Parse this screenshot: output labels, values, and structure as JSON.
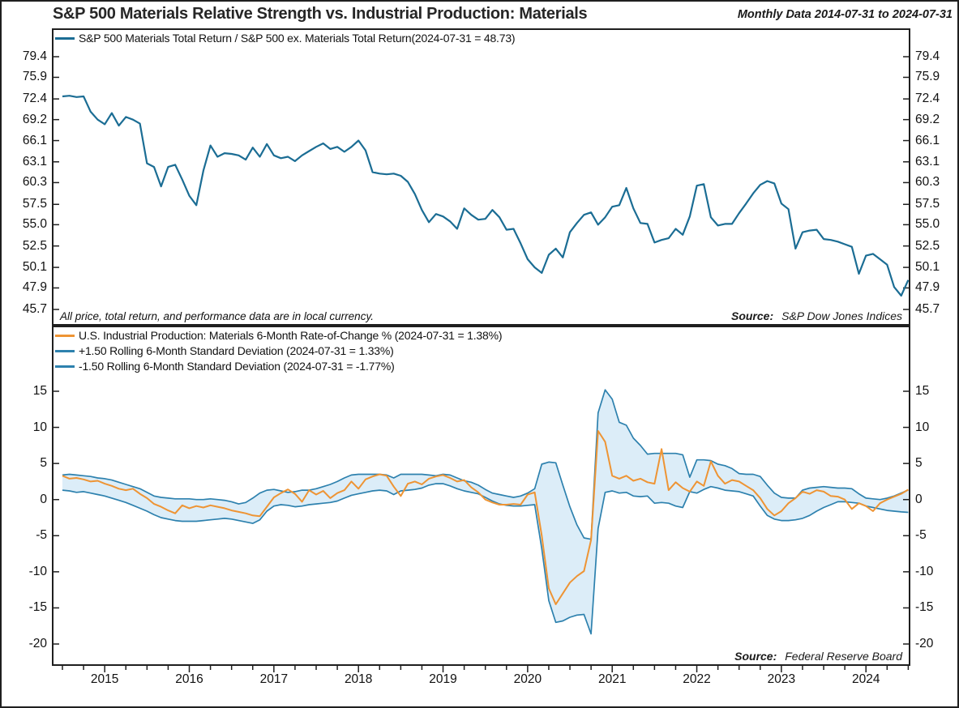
{
  "header": {
    "title": "S&P 500 Materials Relative Strength vs. Industrial Production: Materials",
    "subtitle": "Monthly Data 2014-07-31 to 2024-07-31"
  },
  "colors": {
    "top_line": "#1b6d94",
    "band_line": "#2d81ae",
    "band_fill": "#dcedf8",
    "roc_line": "#ee9434",
    "axis": "#1f1f1f",
    "text": "#1a1a1a"
  },
  "top_panel": {
    "legend": [
      {
        "label": "S&P 500 Materials Total Return / S&P 500 ex. Materials Total Return(2024-07-31 = 48.73)",
        "color": "#1b6d94"
      }
    ],
    "footnote": "All price, total return, and performance data are in local currency.",
    "source_label": "Source:",
    "source_value": "S&P Dow Jones Indices"
  },
  "bottom_panel": {
    "legend": [
      {
        "label": "U.S. Industrial Production: Materials 6-Month Rate-of-Change % (2024-07-31 = 1.38%)",
        "color": "#ee9434"
      },
      {
        "label": "+1.50 Rolling 6-Month Standard Deviation (2024-07-31 = 1.33%)",
        "color": "#2d81ae"
      },
      {
        "label": "-1.50 Rolling 6-Month Standard Deviation (2024-07-31 = -1.77%)",
        "color": "#2d81ae"
      }
    ],
    "source_label": "Source:",
    "source_value": "Federal Reserve Board"
  },
  "chart_data": [
    {
      "type": "line",
      "panel": "top",
      "y_scale": "log",
      "x_start": "2014-07-31",
      "x_end": "2024-07-31",
      "frequency": "monthly",
      "y_ticks": [
        79.4,
        75.9,
        72.4,
        69.2,
        66.1,
        63.1,
        60.3,
        57.5,
        55.0,
        52.5,
        50.1,
        47.9,
        45.7
      ],
      "x_year_labels": [
        "2015",
        "2016",
        "2017",
        "2018",
        "2019",
        "2020",
        "2021",
        "2022",
        "2023",
        "2024"
      ],
      "series": [
        {
          "name": "S&P 500 Materials Total Return / S&P 500 ex. Materials Total Return",
          "last_value": 48.73,
          "color": "#1b6d94",
          "values": [
            72.8,
            72.9,
            72.7,
            72.8,
            70.4,
            69.2,
            68.5,
            70.2,
            68.3,
            69.6,
            69.2,
            68.6,
            62.9,
            62.4,
            59.8,
            62.4,
            62.7,
            60.7,
            58.6,
            57.4,
            61.9,
            65.4,
            63.8,
            64.3,
            64.2,
            64.0,
            63.4,
            65.1,
            63.8,
            65.6,
            64.0,
            63.6,
            63.8,
            63.2,
            64.0,
            64.6,
            65.2,
            65.7,
            64.9,
            65.2,
            64.5,
            65.2,
            66.1,
            64.7,
            61.7,
            61.5,
            61.4,
            61.5,
            61.2,
            60.4,
            58.8,
            56.8,
            55.3,
            56.3,
            56.0,
            55.4,
            54.5,
            57.0,
            56.2,
            55.6,
            55.7,
            56.8,
            55.9,
            54.4,
            54.5,
            52.8,
            51.0,
            50.1,
            49.5,
            51.5,
            52.2,
            51.2,
            54.1,
            55.2,
            56.2,
            56.5,
            55.0,
            55.9,
            57.2,
            57.4,
            59.6,
            57.0,
            55.2,
            55.1,
            52.9,
            53.2,
            53.4,
            54.5,
            53.8,
            56.0,
            59.9,
            60.1,
            55.9,
            54.9,
            55.1,
            55.1,
            56.4,
            57.6,
            58.9,
            60.0,
            60.5,
            60.2,
            57.6,
            56.9,
            52.2,
            54.1,
            54.3,
            54.4,
            53.3,
            53.2,
            53.0,
            52.7,
            52.4,
            49.4,
            51.4,
            51.6,
            51.0,
            50.4,
            48.0,
            47.1,
            48.73
          ]
        }
      ]
    },
    {
      "type": "line_with_band",
      "panel": "bottom",
      "y_scale": "linear",
      "x_start": "2014-07-31",
      "x_end": "2024-07-31",
      "frequency": "monthly",
      "y_ticks": [
        15,
        10,
        5,
        0,
        -5,
        -10,
        -15,
        -20
      ],
      "band_fill": "#dcedf8",
      "series": [
        {
          "name": "U.S. Industrial Production: Materials 6-Month Rate-of-Change %",
          "last_value": 1.38,
          "color": "#ee9434",
          "values": [
            3.3,
            2.9,
            3.0,
            2.8,
            2.5,
            2.6,
            2.2,
            1.9,
            1.5,
            1.3,
            1.5,
            0.8,
            0.2,
            -0.6,
            -1.0,
            -1.5,
            -1.9,
            -0.8,
            -1.2,
            -0.9,
            -1.1,
            -0.8,
            -1.0,
            -1.2,
            -1.5,
            -1.7,
            -1.9,
            -2.2,
            -2.3,
            -1.0,
            0.3,
            0.9,
            1.4,
            0.8,
            -0.3,
            1.3,
            0.7,
            1.2,
            0.2,
            0.9,
            1.3,
            2.5,
            1.5,
            2.8,
            3.2,
            3.5,
            3.3,
            1.8,
            0.5,
            2.2,
            2.5,
            2.1,
            2.9,
            3.2,
            3.4,
            3.0,
            2.5,
            2.7,
            1.7,
            1.0,
            0.0,
            -0.4,
            -0.7,
            -0.7,
            -0.6,
            -0.7,
            0.7,
            1.0,
            -5.0,
            -12.3,
            -14.5,
            -13.0,
            -11.5,
            -10.6,
            -9.9,
            -5.6,
            9.5,
            8.0,
            3.3,
            2.9,
            3.3,
            2.6,
            2.9,
            2.4,
            2.2,
            7.0,
            1.3,
            2.4,
            1.6,
            1.1,
            2.5,
            1.9,
            5.3,
            3.3,
            2.2,
            2.7,
            2.5,
            1.9,
            1.3,
            0.2,
            -1.3,
            -2.2,
            -1.6,
            -0.5,
            0.2,
            1.1,
            0.8,
            1.3,
            1.1,
            0.5,
            0.4,
            0.0,
            -1.3,
            -0.5,
            -0.9,
            -1.6,
            -0.5,
            0.0,
            0.4,
            0.8,
            1.38
          ]
        },
        {
          "name": "+1.50 Rolling 6-Month Standard Deviation",
          "last_value": 1.33,
          "color": "#2d81ae",
          "values": [
            3.4,
            3.5,
            3.4,
            3.3,
            3.2,
            3.0,
            2.9,
            2.7,
            2.4,
            2.1,
            1.8,
            1.5,
            1.0,
            0.5,
            0.3,
            0.2,
            0.1,
            0.1,
            0.1,
            0.0,
            0.0,
            0.1,
            0.0,
            -0.1,
            -0.3,
            -0.6,
            -0.4,
            0.2,
            0.9,
            1.3,
            1.4,
            1.2,
            1.0,
            1.1,
            1.3,
            1.3,
            1.5,
            1.8,
            2.1,
            2.5,
            3.0,
            3.4,
            3.5,
            3.5,
            3.5,
            3.5,
            3.4,
            3.0,
            3.5,
            3.5,
            3.5,
            3.5,
            3.4,
            3.3,
            3.5,
            3.4,
            3.0,
            2.6,
            2.4,
            2.0,
            1.4,
            0.9,
            0.7,
            0.5,
            0.3,
            0.5,
            0.9,
            1.5,
            4.9,
            5.2,
            5.1,
            2.0,
            -1.0,
            -3.5,
            -5.3,
            -5.5,
            12.0,
            15.2,
            13.9,
            10.7,
            10.3,
            8.5,
            7.5,
            6.3,
            6.4,
            6.4,
            6.4,
            6.4,
            6.2,
            3.1,
            5.5,
            5.5,
            5.4,
            4.9,
            4.7,
            4.3,
            3.6,
            3.5,
            3.5,
            3.2,
            2.0,
            0.9,
            0.3,
            0.2,
            0.2,
            1.3,
            1.6,
            1.7,
            1.8,
            1.7,
            1.6,
            1.6,
            1.5,
            0.8,
            0.2,
            0.1,
            0.0,
            0.2,
            0.5,
            0.9,
            1.33
          ]
        },
        {
          "name": "-1.50 Rolling 6-Month Standard Deviation",
          "last_value": -1.77,
          "color": "#2d81ae",
          "values": [
            1.3,
            1.2,
            1.0,
            1.1,
            0.9,
            0.7,
            0.5,
            0.2,
            -0.1,
            -0.4,
            -0.8,
            -1.2,
            -1.6,
            -2.1,
            -2.5,
            -2.7,
            -2.9,
            -3.0,
            -3.0,
            -3.0,
            -2.9,
            -2.8,
            -2.7,
            -2.6,
            -2.7,
            -2.9,
            -3.1,
            -3.3,
            -2.8,
            -1.6,
            -0.9,
            -0.7,
            -0.8,
            -1.0,
            -0.9,
            -0.7,
            -0.6,
            -0.5,
            -0.4,
            -0.2,
            0.2,
            0.6,
            0.8,
            1.0,
            1.2,
            1.3,
            1.2,
            0.7,
            1.2,
            1.3,
            1.4,
            1.6,
            2.0,
            2.2,
            2.2,
            1.9,
            1.5,
            1.2,
            1.0,
            0.8,
            0.3,
            -0.2,
            -0.6,
            -0.8,
            -0.9,
            -0.9,
            -0.8,
            -0.7,
            -6.8,
            -14.0,
            -17.0,
            -16.8,
            -16.3,
            -16.0,
            -15.9,
            -18.6,
            -4.0,
            1.0,
            1.2,
            0.9,
            1.0,
            0.5,
            0.4,
            0.5,
            -0.5,
            -0.4,
            -0.5,
            -0.9,
            -1.1,
            1.1,
            0.9,
            1.4,
            1.8,
            1.6,
            1.3,
            1.2,
            1.1,
            0.8,
            0.5,
            -0.9,
            -2.2,
            -2.7,
            -2.9,
            -2.9,
            -2.8,
            -2.6,
            -2.2,
            -1.6,
            -1.1,
            -0.7,
            -0.3,
            -0.3,
            -0.4,
            -0.5,
            -0.9,
            -1.1,
            -1.3,
            -1.5,
            -1.6,
            -1.7,
            -1.77
          ]
        }
      ]
    }
  ]
}
